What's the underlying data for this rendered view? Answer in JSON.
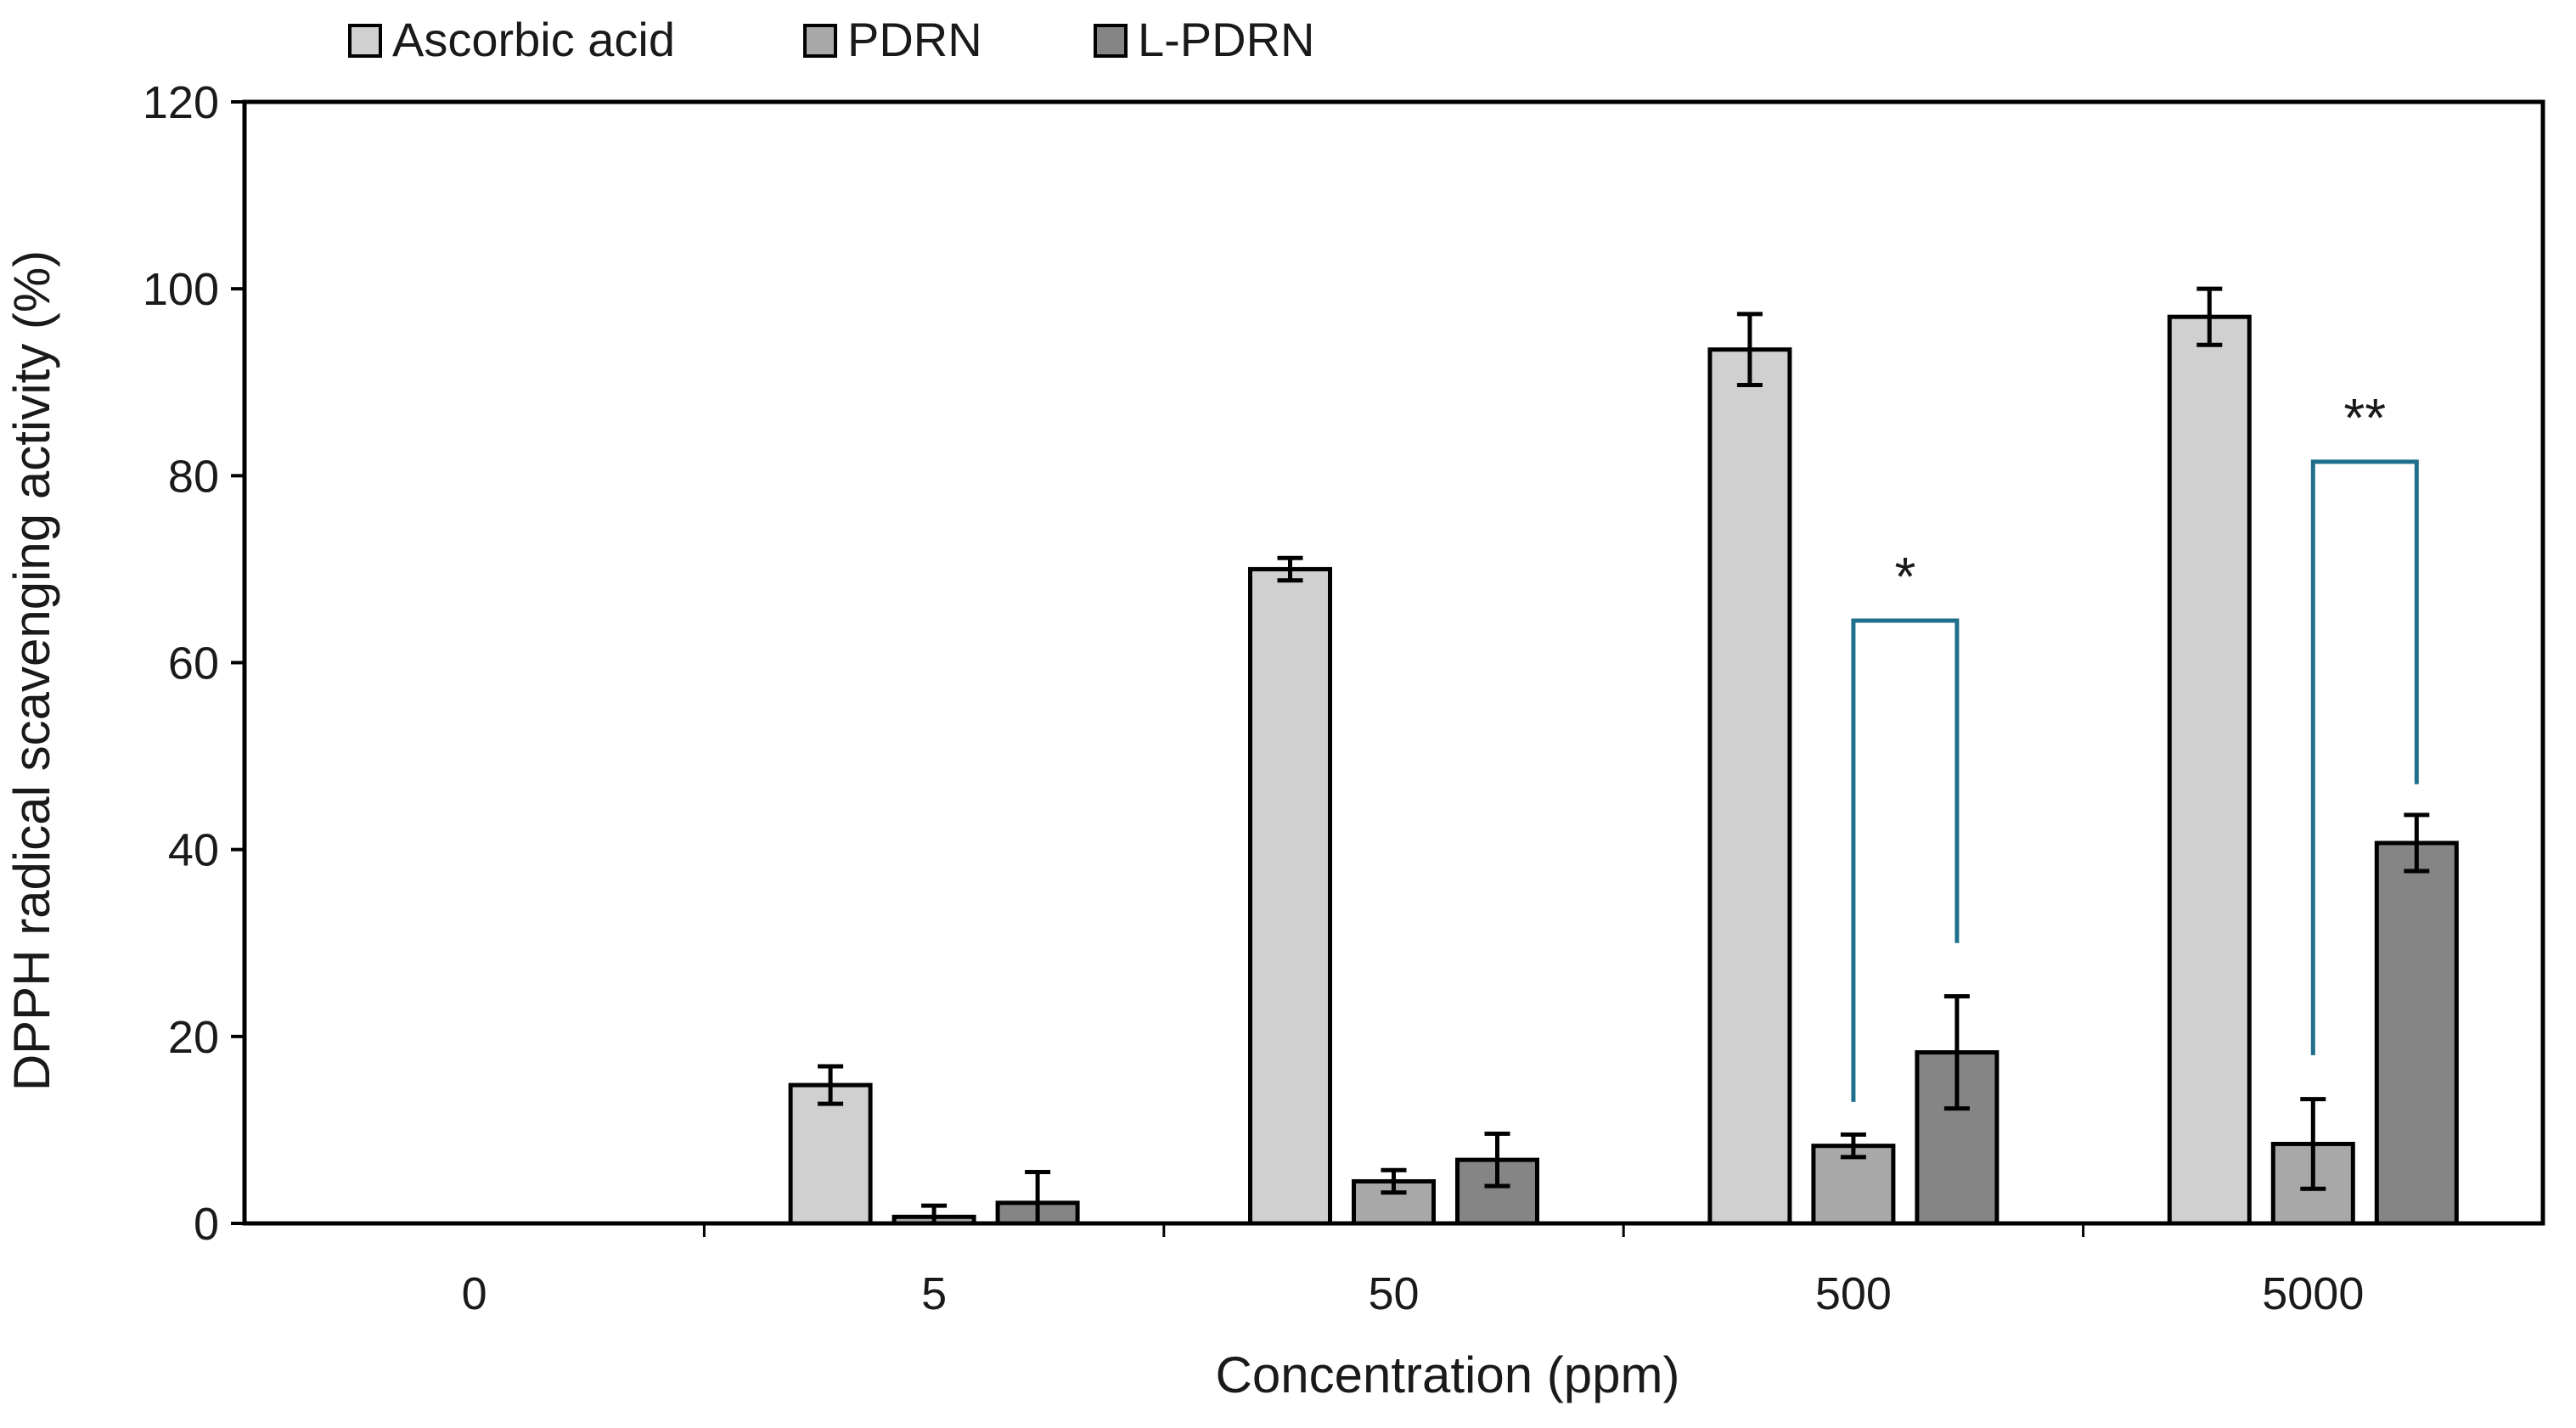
{
  "chart_data": {
    "type": "bar",
    "title": "",
    "xlabel": "Concentration (ppm)",
    "ylabel": "DPPH radical scavenging activity (%)",
    "ylim": [
      0,
      120
    ],
    "yticks": [
      0,
      20,
      40,
      60,
      80,
      100,
      120
    ],
    "categories": [
      "0",
      "5",
      "50",
      "500",
      "5000"
    ],
    "series": [
      {
        "name": "Ascorbic acid",
        "color": "#d0d0d0",
        "values": [
          null,
          14.8,
          70.0,
          93.5,
          97.0
        ],
        "errors": [
          null,
          2.0,
          1.2,
          3.8,
          3.0
        ]
      },
      {
        "name": "PDRN",
        "color": "#a8a8a8",
        "values": [
          null,
          0.7,
          4.5,
          8.3,
          8.5
        ],
        "errors": [
          null,
          1.2,
          1.2,
          1.2,
          4.8
        ]
      },
      {
        "name": "L-PDRN",
        "color": "#858585",
        "values": [
          null,
          2.2,
          6.8,
          18.3,
          40.7
        ],
        "errors": [
          null,
          3.3,
          2.8,
          6.0,
          3.0
        ]
      }
    ],
    "legend_position": "top-left",
    "grid": false,
    "annotations": [
      {
        "category": "500",
        "from_series": "PDRN",
        "to_series": "L-PDRN",
        "label": "*",
        "color": "#1f6f8b",
        "level": 64.5,
        "left_end": 13,
        "right_end": 30
      },
      {
        "category": "5000",
        "from_series": "PDRN",
        "to_series": "L-PDRN",
        "label": "**",
        "color": "#1f6f8b",
        "level": 81.5,
        "left_end": 18,
        "right_end": 47
      }
    ]
  }
}
